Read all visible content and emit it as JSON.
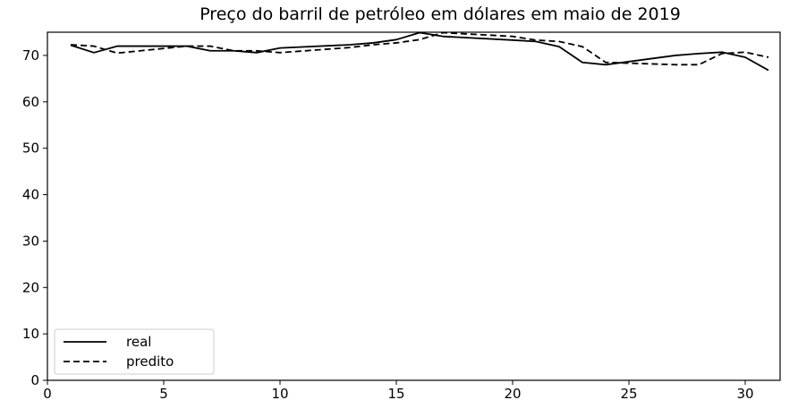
{
  "chart_data": {
    "type": "line",
    "title": "Preço do barril de petróleo em dólares em maio de 2019",
    "xlabel": "",
    "ylabel": "",
    "xlim": [
      0,
      31.5
    ],
    "ylim": [
      0,
      75
    ],
    "xticks": [
      0,
      5,
      10,
      15,
      20,
      25,
      30
    ],
    "yticks": [
      0,
      10,
      20,
      30,
      40,
      50,
      60,
      70
    ],
    "grid": false,
    "legend_position": "lower-left",
    "series": [
      {
        "name": "real",
        "style": "solid",
        "color": "#000000",
        "x": [
          1,
          2,
          3,
          6,
          7,
          8,
          9,
          10,
          13,
          14,
          15,
          16,
          17,
          20,
          21,
          22,
          23,
          24,
          27,
          28,
          29,
          30,
          31
        ],
        "y": [
          72.2,
          70.6,
          72.0,
          72.0,
          71.0,
          71.0,
          70.6,
          71.6,
          72.3,
          72.7,
          73.4,
          74.9,
          74.1,
          73.3,
          73.0,
          71.9,
          68.5,
          68.0,
          70.0,
          70.4,
          70.7,
          69.6,
          66.8
        ]
      },
      {
        "name": "predito",
        "style": "dashed",
        "color": "#000000",
        "x": [
          1,
          2,
          3,
          6,
          7,
          8,
          9,
          10,
          13,
          14,
          15,
          16,
          17,
          20,
          21,
          22,
          23,
          24,
          27,
          28,
          29,
          30,
          31
        ],
        "y": [
          72.3,
          72.0,
          70.5,
          72.0,
          72.0,
          71.0,
          71.0,
          70.6,
          71.7,
          72.3,
          72.7,
          73.4,
          74.9,
          74.1,
          73.3,
          73.0,
          71.9,
          68.5,
          68.0,
          68.0,
          70.4,
          70.7,
          69.6
        ]
      }
    ]
  }
}
